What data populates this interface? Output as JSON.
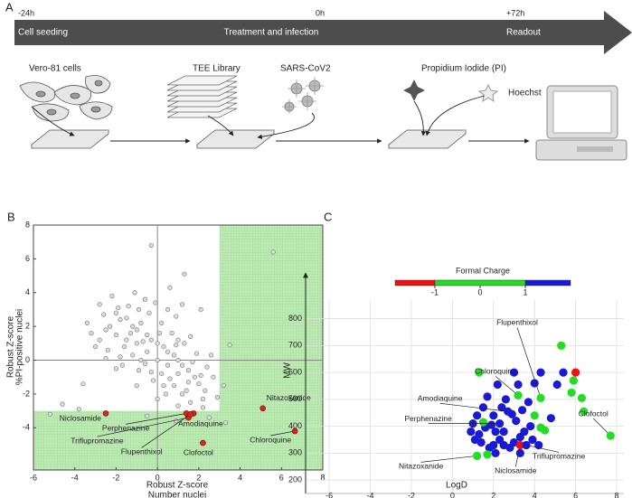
{
  "panel_a": {
    "label": "A",
    "times": [
      "-24h",
      "0h",
      "+72h"
    ],
    "phases": [
      "Cell seeding",
      "Treatment and infection",
      "Readout"
    ],
    "steps": [
      "Vero-81 cells",
      "TEE Library",
      "SARS-CoV2",
      "Propidium Iodide (PI)",
      "Hoechst"
    ]
  },
  "chart_data": [
    {
      "type": "scatter",
      "label": "B",
      "xlabel": [
        "Robust Z-score",
        "Number nuclei"
      ],
      "ylabel": [
        "Robust Z-score",
        "%PI-positive nuclei"
      ],
      "xlim": [
        -6,
        8
      ],
      "ylim": [
        -6.5,
        8
      ],
      "xticks": [
        -6,
        -4,
        -2,
        0,
        2,
        4,
        6,
        8
      ],
      "yticks": [
        -4,
        -2,
        0,
        2,
        4,
        6,
        8
      ],
      "zero_lines": true,
      "thresholds": {
        "x": 3,
        "y": -3
      },
      "highlight_color": "#bfeab5",
      "series": [
        {
          "color": "#dcdcdc",
          "stroke": "#6f6f6f",
          "x": [
            -1.5,
            -1.2,
            -1.0,
            -0.8,
            -2.0,
            -1.8,
            -2.3,
            -2.6,
            -0.5,
            -0.3,
            0,
            0.3,
            0.5,
            0.8,
            1.0,
            1.2,
            1.5,
            1.8,
            2.0,
            2.3,
            -1.0,
            -0.5,
            0,
            0.5,
            1.0,
            1.5,
            -1.5,
            -2.0,
            -2.5,
            -1.2,
            -0.6,
            0.2,
            0.8,
            1.2,
            1.6,
            0.4,
            -0.2,
            -0.9,
            -1.8,
            -2.4,
            -0.4,
            0.2,
            0.7,
            1.3,
            1.9,
            2.4,
            2.7,
            -1.4,
            -0.9,
            -2.8,
            -3.2,
            -3.0,
            -2.0,
            -1.0,
            0,
            1.0,
            2.2,
            2.9,
            2.6,
            1.6,
            0.9,
            -0.1,
            -1.1,
            -2.2,
            -0.6,
            0.5,
            1.0,
            -0.3,
            0.6,
            -1.6,
            -2.8,
            -3.4,
            -1.9,
            0.1,
            0.9,
            1.7,
            -0.7,
            -1.3,
            2.1,
            1.4,
            0.3,
            -0.8,
            -1.7,
            -2.5,
            0.6,
            -0.3,
            1.3,
            5.6,
            -4.6,
            -5.2,
            -3.8,
            2.2,
            2.5,
            0.9,
            -0.5,
            3.3,
            2.1,
            1.2,
            -3.6,
            3.2,
            3.5
          ],
          "values": [
            2.5,
            2.0,
            1.8,
            2.2,
            2.8,
            2.4,
            2.0,
            2.7,
            1.5,
            1.2,
            1.0,
            0.8,
            0.5,
            0.3,
            0,
            -0.3,
            -0.6,
            -1.0,
            -1.4,
            -1.8,
            1.0,
            0.5,
            0,
            -0.3,
            -0.8,
            -1.3,
            1.2,
            1.5,
            1.8,
            0.3,
            -0.2,
            -0.8,
            -1.5,
            -2.0,
            -2.5,
            -2.0,
            -1.2,
            -0.6,
            0.2,
            0.6,
            2.8,
            2.2,
            1.6,
            1.0,
            0.4,
            -0.4,
            -1.0,
            3.2,
            3.0,
            3.3,
            1.6,
            0.8,
            -0.5,
            -1.5,
            -2.3,
            -2.7,
            -2.8,
            -2.2,
            0.3,
            1.4,
            2.6,
            3.4,
            4.0,
            3.8,
            3.6,
            3.0,
            1.2,
            -0.7,
            -1.1,
            0.8,
            1.2,
            2.2,
            3.1,
            1.6,
            0.9,
            -0.1,
            1.1,
            1.6,
            -0.9,
            -1.8,
            -1.5,
            0.0,
            -0.3,
            0.1,
            4.3,
            6.8,
            5.1,
            6.4,
            -2.6,
            -3.2,
            -2.9,
            -2.3,
            -3.4,
            -3.6,
            -3.3,
            -3.7,
            3.0,
            3.3,
            -1.4,
            -1.5,
            0.9
          ]
        },
        {
          "color": "#d42a1e",
          "stroke": "#7a0000",
          "x": [
            -2.5,
            5.1,
            6.65,
            2.2,
            1.75,
            1.4,
            1.5,
            1.6
          ],
          "values": [
            -3.15,
            -2.85,
            -4.2,
            -4.9,
            -3.15,
            -3.15,
            -3.4,
            -3.2
          ],
          "point_labels": [
            "Niclosamide",
            "Nitazoxanide",
            "Chloroquine",
            "Clofoctol",
            "Amodiaquine",
            "Perphenazine",
            "Triflupromazine",
            "Flupenthixol"
          ]
        }
      ]
    },
    {
      "type": "scatter",
      "label": "C",
      "xlabel": [
        "LogD"
      ],
      "ylabel": [
        "MW"
      ],
      "xlim": [
        -7.15,
        8.35
      ],
      "ylim": [
        150,
        970
      ],
      "xticks": [
        -6,
        -4,
        -2,
        0,
        2,
        4,
        6,
        8
      ],
      "yticks": [
        200,
        300,
        400,
        500,
        600,
        700,
        800
      ],
      "grid": true,
      "colorbar": {
        "title": "Formal Charge",
        "lim": [
          -1.88,
          2
        ],
        "ticks": [
          -1,
          0,
          1
        ],
        "segments": [
          {
            "from": -1.88,
            "to": -1,
            "color": "#ee1111"
          },
          {
            "from": -1,
            "to": 1,
            "color": "#22dd22"
          },
          {
            "from": 1,
            "to": 2,
            "color": "#1a1ad6"
          }
        ]
      },
      "series": [
        {
          "color": "#1a1ad6",
          "x": [
            2.0,
            2.4,
            2.6,
            3.0,
            3.2,
            2.2,
            1.7,
            1.5,
            1.2,
            1.0,
            0.9,
            1.3,
            1.6,
            1.9,
            2.1,
            2.3,
            2.5,
            2.8,
            3.0,
            3.3,
            3.5,
            3.8,
            3.1,
            2.9,
            3.4,
            3.7,
            4.0,
            4.3,
            5.4,
            5.1,
            1.4,
            1.8,
            2.1,
            3.9,
            4.2,
            2.5,
            1.1,
            3.3,
            2.0,
            4.8
          ],
          "values": [
            440,
            470,
            500,
            600,
            555,
            555,
            510,
            470,
            440,
            410,
            380,
            370,
            395,
            405,
            380,
            350,
            330,
            320,
            340,
            360,
            380,
            400,
            420,
            445,
            460,
            490,
            560,
            600,
            600,
            555,
            340,
            320,
            300,
            350,
            330,
            380,
            350,
            300,
            330,
            430
          ]
        },
        {
          "color": "#22dd22",
          "x": [
            1.3,
            5.3,
            5.9,
            5.8,
            6.3,
            6.4,
            4.0,
            4.3,
            4.5,
            1.7,
            1.5
          ],
          "values": [
            600,
            700,
            570,
            525,
            505,
            455,
            440,
            395,
            385,
            295,
            415
          ]
        },
        {
          "color": "#ee1111",
          "x": [
            6.0
          ],
          "values": [
            600
          ]
        },
        {
          "colors": [
            "#22dd22",
            "#22dd22",
            "#1a1ad6",
            "#1a1ad6",
            "#22dd22",
            "#ee1111",
            "#1a1ad6",
            "#22dd22"
          ],
          "x": [
            4.3,
            3.2,
            2.7,
            2.3,
            1.2,
            3.3,
            3.6,
            7.7
          ],
          "values": [
            505,
            515,
            455,
            410,
            290,
            330,
            330,
            365
          ],
          "point_labels": [
            "Flupenthixol",
            "Chloroquine",
            "Amodiaquine",
            "Perphenazine",
            "Nitazoxanide",
            "Niclosamide",
            "Triflupromazine",
            "Clofoctol"
          ]
        }
      ]
    }
  ]
}
